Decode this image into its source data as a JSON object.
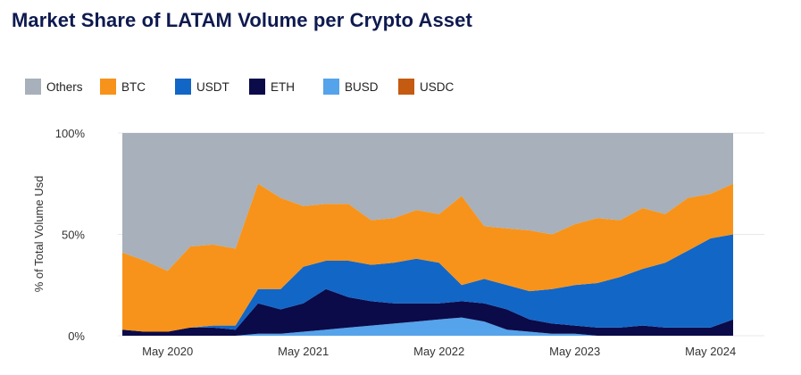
{
  "chart_data": {
    "type": "area",
    "stacked": true,
    "normalized": true,
    "title": "Market Share of LATAM Volume per Crypto Asset",
    "xlabel": "",
    "ylabel": "% of Total Volume Usd",
    "ylim": [
      0,
      100
    ],
    "yticks": [
      "0%",
      "50%",
      "100%"
    ],
    "xticks": [
      "May 2020",
      "May 2021",
      "May 2022",
      "May 2023",
      "May 2024"
    ],
    "legend_position": "top-left",
    "x": [
      "Jan 2020",
      "Mar 2020",
      "May 2020",
      "Jul 2020",
      "Sep 2020",
      "Nov 2020",
      "Jan 2021",
      "Mar 2021",
      "May 2021",
      "Jul 2021",
      "Sep 2021",
      "Nov 2021",
      "Jan 2022",
      "Mar 2022",
      "May 2022",
      "Jul 2022",
      "Sep 2022",
      "Nov 2022",
      "Jan 2023",
      "Mar 2023",
      "May 2023",
      "Jul 2023",
      "Sep 2023",
      "Nov 2023",
      "Jan 2024",
      "Mar 2024",
      "May 2024",
      "Jun 2024"
    ],
    "series": [
      {
        "name": "BUSD",
        "color": "#55a3ea",
        "values": [
          0,
          0,
          0,
          0,
          0,
          0,
          1,
          1,
          2,
          3,
          4,
          5,
          6,
          7,
          8,
          9,
          7,
          3,
          2,
          1,
          1,
          0,
          0,
          0,
          0,
          0,
          0,
          0
        ]
      },
      {
        "name": "ETH",
        "color": "#0b0b4a",
        "values": [
          3,
          2,
          2,
          4,
          4,
          3,
          15,
          12,
          14,
          20,
          15,
          12,
          10,
          9,
          8,
          8,
          9,
          10,
          6,
          5,
          4,
          4,
          4,
          5,
          4,
          4,
          4,
          8
        ]
      },
      {
        "name": "USDT",
        "color": "#1266c6",
        "values": [
          0,
          0,
          0,
          0,
          1,
          2,
          7,
          10,
          18,
          14,
          18,
          18,
          20,
          22,
          20,
          8,
          12,
          12,
          14,
          17,
          20,
          22,
          25,
          28,
          32,
          38,
          44,
          42
        ]
      },
      {
        "name": "BTC",
        "color": "#f7931a",
        "values": [
          38,
          35,
          30,
          40,
          40,
          38,
          52,
          45,
          30,
          28,
          28,
          22,
          22,
          24,
          24,
          44,
          26,
          28,
          30,
          27,
          30,
          32,
          28,
          30,
          24,
          26,
          22,
          25
        ]
      },
      {
        "name": "USDC",
        "color": "#c55a11",
        "values": [
          0,
          0,
          0,
          0,
          0,
          0,
          0,
          0,
          0,
          0,
          0,
          0,
          0,
          0,
          0,
          0,
          0,
          0,
          0,
          0,
          0,
          0,
          0,
          0,
          0,
          0,
          0,
          0
        ]
      },
      {
        "name": "Others",
        "color": "#a7b0bb",
        "values": [
          59,
          63,
          68,
          56,
          55,
          57,
          25,
          32,
          36,
          35,
          35,
          43,
          42,
          38,
          40,
          31,
          46,
          47,
          48,
          50,
          45,
          42,
          43,
          37,
          40,
          32,
          30,
          25
        ]
      }
    ],
    "legend": [
      {
        "name": "Others",
        "color": "#a7b0bb"
      },
      {
        "name": "BTC",
        "color": "#f7931a"
      },
      {
        "name": "USDT",
        "color": "#1266c6"
      },
      {
        "name": "ETH",
        "color": "#0b0b4a"
      },
      {
        "name": "BUSD",
        "color": "#55a3ea"
      },
      {
        "name": "USDC",
        "color": "#c55a11"
      }
    ]
  }
}
